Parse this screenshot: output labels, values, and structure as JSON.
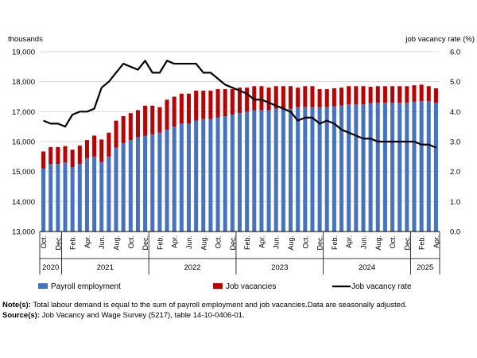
{
  "chart_data": {
    "type": "bar",
    "stacked": true,
    "left_axis_label": "thousands",
    "right_axis_label": "job vacancy rate (%)",
    "ylim_left": [
      13000,
      19000
    ],
    "yticks_left": [
      "13,000",
      "14,000",
      "15,000",
      "16,000",
      "17,000",
      "18,000",
      "19,000"
    ],
    "ylim_right": [
      0,
      6
    ],
    "yticks_right": [
      "0.0",
      "1.0",
      "2.0",
      "3.0",
      "4.0",
      "5.0",
      "6.0"
    ],
    "x": [
      "2020-10",
      "2020-11",
      "2020-12",
      "2021-01",
      "2021-02",
      "2021-03",
      "2021-04",
      "2021-05",
      "2021-06",
      "2021-07",
      "2021-08",
      "2021-09",
      "2021-10",
      "2021-11",
      "2021-12",
      "2022-01",
      "2022-02",
      "2022-03",
      "2022-04",
      "2022-05",
      "2022-06",
      "2022-07",
      "2022-08",
      "2022-09",
      "2022-10",
      "2022-11",
      "2022-12",
      "2023-01",
      "2023-02",
      "2023-03",
      "2023-04",
      "2023-05",
      "2023-06",
      "2023-07",
      "2023-08",
      "2023-09",
      "2023-10",
      "2023-11",
      "2023-12",
      "2024-01",
      "2024-02",
      "2024-03",
      "2024-04",
      "2024-05",
      "2024-06",
      "2024-07",
      "2024-08",
      "2024-09",
      "2024-10",
      "2024-11",
      "2024-12",
      "2025-01",
      "2025-02",
      "2025-03",
      "2025-04"
    ],
    "month_labels": [
      {
        "label": "Oct.",
        "index": 0
      },
      {
        "label": "Dec.",
        "index": 2
      },
      {
        "label": "Feb.",
        "index": 4
      },
      {
        "label": "Apr.",
        "index": 6
      },
      {
        "label": "Jun.",
        "index": 8
      },
      {
        "label": "Aug.",
        "index": 10
      },
      {
        "label": "Oct.",
        "index": 12
      },
      {
        "label": "Dec.",
        "index": 14
      },
      {
        "label": "Feb.",
        "index": 16
      },
      {
        "label": "Apr.",
        "index": 18
      },
      {
        "label": "Jun.",
        "index": 20
      },
      {
        "label": "Aug.",
        "index": 22
      },
      {
        "label": "Oct.",
        "index": 24
      },
      {
        "label": "Dec.",
        "index": 26
      },
      {
        "label": "Feb.",
        "index": 28
      },
      {
        "label": "Apr.",
        "index": 30
      },
      {
        "label": "Jun.",
        "index": 32
      },
      {
        "label": "Aug.",
        "index": 34
      },
      {
        "label": "Oct.",
        "index": 36
      },
      {
        "label": "Dec.",
        "index": 38
      },
      {
        "label": "Feb.",
        "index": 40
      },
      {
        "label": "Apr.",
        "index": 42
      },
      {
        "label": "Jun.",
        "index": 44
      },
      {
        "label": "Aug.",
        "index": 46
      },
      {
        "label": "Oct.",
        "index": 48
      },
      {
        "label": "Dec.",
        "index": 50
      },
      {
        "label": "Feb.",
        "index": 52
      },
      {
        "label": "Apr.",
        "index": 54
      }
    ],
    "years": [
      {
        "label": "2020",
        "start": 0,
        "end": 2
      },
      {
        "label": "2021",
        "start": 3,
        "end": 14
      },
      {
        "label": "2022",
        "start": 15,
        "end": 26
      },
      {
        "label": "2023",
        "start": 27,
        "end": 38
      },
      {
        "label": "2024",
        "start": 39,
        "end": 50
      },
      {
        "label": "2025",
        "start": 51,
        "end": 54
      }
    ],
    "series": [
      {
        "name": "Payroll employment",
        "kind": "bar",
        "color": "#4472c4",
        "values": [
          15100,
          15250,
          15250,
          15300,
          15150,
          15250,
          15450,
          15500,
          15320,
          15500,
          15800,
          15950,
          16050,
          16150,
          16200,
          16250,
          16300,
          16400,
          16500,
          16600,
          16600,
          16700,
          16750,
          16750,
          16800,
          16850,
          16900,
          16950,
          17000,
          17050,
          17050,
          17050,
          17100,
          17100,
          17100,
          17150,
          17150,
          17150,
          17150,
          17150,
          17180,
          17200,
          17250,
          17250,
          17250,
          17280,
          17300,
          17300,
          17300,
          17300,
          17300,
          17330,
          17350,
          17350,
          17300
        ]
      },
      {
        "name": "Job vacancies",
        "kind": "bar",
        "color": "#c00000",
        "values": [
          570,
          570,
          570,
          550,
          580,
          620,
          600,
          700,
          750,
          800,
          900,
          900,
          900,
          900,
          1000,
          950,
          850,
          1000,
          1000,
          1000,
          1000,
          1000,
          950,
          950,
          950,
          900,
          850,
          850,
          800,
          800,
          800,
          750,
          750,
          750,
          750,
          650,
          700,
          700,
          600,
          600,
          600,
          600,
          600,
          600,
          600,
          550,
          550,
          550,
          550,
          550,
          550,
          550,
          550,
          500,
          480
        ]
      },
      {
        "name": "Job vacancy rate",
        "kind": "line",
        "axis": "right",
        "color": "#000000",
        "values": [
          3.7,
          3.6,
          3.6,
          3.5,
          3.9,
          4.0,
          4.0,
          4.1,
          4.8,
          5.0,
          5.3,
          5.6,
          5.5,
          5.4,
          5.7,
          5.3,
          5.3,
          5.7,
          5.6,
          5.6,
          5.6,
          5.6,
          5.3,
          5.3,
          5.1,
          4.9,
          4.8,
          4.7,
          4.6,
          4.4,
          4.4,
          4.3,
          4.2,
          4.1,
          4.0,
          3.7,
          3.8,
          3.8,
          3.6,
          3.7,
          3.6,
          3.4,
          3.3,
          3.2,
          3.1,
          3.1,
          3.0,
          3.0,
          3.0,
          3.0,
          3.0,
          3.0,
          2.9,
          2.9,
          2.8
        ]
      }
    ],
    "legend_position": "bottom",
    "grid": "horizontal"
  },
  "notes": {
    "note_label": "Note(s):",
    "note_text": "Total labour demand is equal to the sum of payroll employment and job vacancies.Data are seasonally adjusted.",
    "source_label": "Source(s):",
    "source_text": "Job Vacancy and Wage Survey (5217), table 14-10-0406-01."
  }
}
